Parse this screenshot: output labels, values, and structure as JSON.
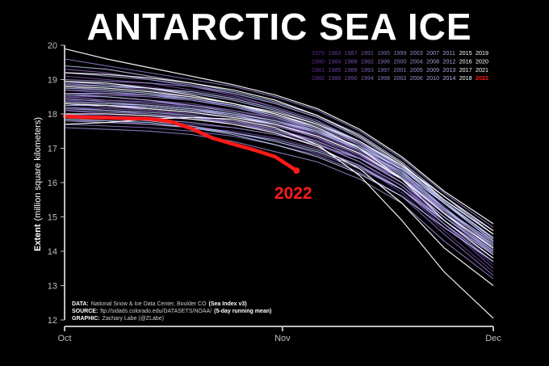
{
  "chart_data": {
    "type": "line",
    "title": "ANTARCTIC SEA ICE",
    "ylabel_main": "Extent",
    "ylabel_unit": "(million square kilometers)",
    "ylim": [
      12,
      20
    ],
    "yticks": [
      "12",
      "13",
      "14",
      "15",
      "16",
      "17",
      "18",
      "19",
      "20"
    ],
    "xlim_days": [
      0,
      61
    ],
    "xticks": [
      {
        "label": "Oct",
        "day": 0
      },
      {
        "label": "Nov",
        "day": 31
      },
      {
        "label": "Dec",
        "day": 61
      }
    ],
    "legend_rows": [
      [
        "1979",
        "1983",
        "1987",
        "1991",
        "1995",
        "1999",
        "2003",
        "2007",
        "2011",
        "2015",
        "2019"
      ],
      [
        "1980",
        "1984",
        "1988",
        "1992",
        "1996",
        "2000",
        "2004",
        "2008",
        "2012",
        "2016",
        "2020"
      ],
      [
        "1981",
        "1985",
        "1989",
        "1993",
        "1997",
        "2001",
        "2005",
        "2009",
        "2013",
        "2017",
        "2021"
      ],
      [
        "1982",
        "1986",
        "1990",
        "1994",
        "1998",
        "2002",
        "2006",
        "2010",
        "2014",
        "2018",
        "2022"
      ]
    ],
    "highlight": {
      "name": "2022",
      "color": "#ff1a1a",
      "label": "2022",
      "x": [
        0,
        3,
        6,
        9,
        12,
        15,
        18,
        21,
        24,
        27,
        30,
        33
      ],
      "y": [
        17.93,
        17.9,
        17.89,
        17.87,
        17.86,
        17.78,
        17.58,
        17.3,
        17.12,
        16.95,
        16.75,
        16.35
      ]
    },
    "historical": {
      "x": [
        0,
        6,
        12,
        18,
        24,
        30,
        36,
        42,
        48,
        54,
        61
      ],
      "series": [
        [
          18.0,
          17.95,
          17.9,
          17.85,
          17.75,
          17.55,
          17.25,
          16.75,
          16.0,
          14.9,
          13.8
        ],
        [
          18.4,
          18.3,
          18.2,
          18.1,
          17.95,
          17.75,
          17.4,
          16.9,
          16.2,
          15.1,
          14.0
        ],
        [
          18.7,
          18.6,
          18.5,
          18.4,
          18.25,
          18.0,
          17.6,
          17.0,
          16.1,
          15.0,
          13.9
        ],
        [
          18.1,
          18.0,
          17.95,
          17.9,
          17.8,
          17.65,
          17.3,
          16.8,
          16.0,
          14.8,
          13.6
        ],
        [
          18.9,
          18.9,
          18.8,
          18.6,
          18.4,
          18.1,
          17.7,
          17.1,
          16.3,
          15.2,
          14.2
        ],
        [
          18.3,
          18.25,
          18.1,
          17.95,
          17.7,
          17.45,
          17.1,
          16.6,
          15.8,
          14.7,
          13.7
        ],
        [
          17.8,
          17.8,
          17.7,
          17.6,
          17.5,
          17.3,
          17.0,
          16.5,
          15.7,
          14.6,
          13.4
        ],
        [
          18.5,
          18.5,
          18.4,
          18.2,
          18.0,
          17.7,
          17.3,
          16.7,
          16.0,
          15.0,
          14.0
        ],
        [
          19.1,
          19.0,
          18.9,
          18.7,
          18.5,
          18.2,
          17.8,
          17.2,
          16.4,
          15.4,
          14.4
        ],
        [
          17.9,
          17.85,
          17.8,
          17.7,
          17.6,
          17.4,
          17.1,
          16.6,
          15.9,
          14.8,
          13.5
        ],
        [
          18.6,
          18.5,
          18.4,
          18.3,
          18.1,
          17.85,
          17.5,
          16.9,
          16.1,
          15.0,
          13.9
        ],
        [
          18.2,
          18.15,
          18.1,
          18.0,
          17.9,
          17.7,
          17.4,
          16.9,
          16.2,
          15.2,
          14.2
        ],
        [
          18.8,
          18.7,
          18.6,
          18.5,
          18.3,
          18.0,
          17.6,
          17.0,
          16.2,
          15.2,
          14.3
        ],
        [
          18.0,
          17.9,
          17.8,
          17.65,
          17.45,
          17.2,
          16.85,
          16.4,
          15.8,
          14.8,
          13.8
        ],
        [
          19.3,
          19.2,
          19.0,
          18.8,
          18.55,
          18.2,
          17.8,
          17.2,
          16.5,
          15.6,
          14.6
        ],
        [
          18.4,
          18.4,
          18.35,
          18.25,
          18.1,
          17.9,
          17.55,
          17.0,
          16.3,
          15.3,
          14.1
        ],
        [
          17.7,
          17.65,
          17.6,
          17.5,
          17.35,
          17.1,
          16.8,
          16.3,
          15.6,
          14.5,
          13.3
        ],
        [
          18.5,
          18.4,
          18.3,
          18.2,
          18.0,
          17.8,
          17.5,
          17.0,
          16.4,
          15.5,
          14.6
        ],
        [
          18.9,
          18.8,
          18.7,
          18.5,
          18.3,
          18.0,
          17.6,
          17.1,
          16.3,
          15.1,
          13.9
        ],
        [
          18.2,
          18.1,
          18.0,
          17.9,
          17.7,
          17.5,
          17.2,
          16.7,
          16.0,
          15.0,
          14.0
        ],
        [
          19.6,
          19.4,
          19.2,
          19.0,
          18.8,
          18.5,
          18.1,
          17.5,
          16.7,
          15.7,
          14.7
        ],
        [
          18.6,
          18.55,
          18.5,
          18.4,
          18.2,
          17.95,
          17.6,
          17.1,
          16.4,
          15.4,
          14.3
        ],
        [
          17.6,
          17.55,
          17.5,
          17.4,
          17.2,
          16.9,
          16.6,
          16.1,
          15.4,
          14.3,
          13.2
        ],
        [
          18.3,
          18.2,
          18.15,
          18.05,
          17.9,
          17.65,
          17.3,
          16.8,
          16.1,
          15.1,
          14.1
        ],
        [
          19.0,
          18.95,
          18.9,
          18.8,
          18.6,
          18.3,
          17.9,
          17.3,
          16.5,
          15.4,
          14.3
        ],
        [
          18.1,
          18.05,
          18.0,
          17.9,
          17.75,
          17.5,
          17.15,
          16.6,
          15.9,
          14.9,
          13.9
        ],
        [
          18.7,
          18.65,
          18.55,
          18.4,
          18.2,
          17.9,
          17.5,
          16.95,
          16.2,
          15.2,
          14.1
        ],
        [
          17.9,
          17.9,
          17.85,
          17.75,
          17.6,
          17.4,
          17.1,
          16.7,
          16.1,
          15.2,
          14.2
        ],
        [
          18.45,
          18.35,
          18.25,
          18.15,
          17.95,
          17.7,
          17.35,
          16.85,
          16.15,
          15.15,
          14.05
        ],
        [
          19.2,
          19.1,
          19.0,
          18.85,
          18.6,
          18.3,
          17.9,
          17.3,
          16.5,
          15.5,
          14.5
        ],
        [
          18.3,
          18.25,
          18.2,
          18.1,
          17.95,
          17.75,
          17.45,
          17.0,
          16.4,
          15.5,
          14.5
        ],
        [
          17.8,
          17.75,
          17.7,
          17.6,
          17.45,
          17.25,
          16.95,
          16.5,
          15.8,
          14.8,
          13.7
        ],
        [
          18.6,
          18.6,
          18.55,
          18.45,
          18.25,
          18.0,
          17.65,
          17.15,
          16.45,
          15.45,
          14.4
        ],
        [
          18.95,
          18.85,
          18.75,
          18.6,
          18.4,
          18.1,
          17.7,
          17.15,
          16.35,
          15.25,
          14.15
        ],
        [
          18.15,
          18.1,
          18.05,
          17.95,
          17.8,
          17.55,
          17.2,
          16.7,
          16.0,
          15.0,
          13.95
        ],
        [
          18.55,
          18.5,
          18.4,
          18.25,
          18.05,
          17.8,
          17.45,
          16.95,
          16.3,
          15.4,
          14.4
        ],
        [
          19.4,
          19.3,
          19.1,
          18.9,
          18.65,
          18.35,
          17.95,
          17.4,
          16.6,
          15.6,
          14.5
        ],
        [
          18.25,
          18.25,
          18.2,
          18.1,
          17.95,
          17.7,
          17.35,
          16.85,
          16.15,
          15.1,
          14.0
        ],
        [
          17.95,
          17.9,
          17.8,
          17.65,
          17.45,
          17.2,
          16.9,
          16.45,
          15.8,
          14.9,
          13.9
        ],
        [
          18.75,
          18.7,
          18.6,
          18.45,
          18.25,
          17.95,
          17.55,
          17.0,
          16.25,
          15.25,
          14.25
        ],
        [
          18.85,
          18.8,
          18.75,
          18.65,
          18.45,
          18.15,
          17.75,
          17.2,
          16.45,
          15.45,
          14.35
        ],
        [
          18.35,
          18.3,
          18.25,
          18.15,
          18.0,
          17.8,
          17.5,
          17.05,
          16.4,
          15.4,
          14.3
        ],
        [
          17.85,
          17.8,
          17.75,
          17.6,
          17.4,
          17.1,
          16.75,
          16.25,
          15.6,
          14.7,
          13.7
        ]
      ]
    },
    "white_series": [
      [
        19.9,
        19.6,
        19.35,
        19.1,
        18.85,
        18.55,
        18.15,
        17.55,
        16.75,
        15.75,
        14.8
      ],
      [
        19.2,
        19.15,
        19.05,
        18.9,
        18.7,
        18.4,
        17.95,
        17.35,
        16.55,
        15.5,
        14.5
      ],
      [
        18.0,
        18.0,
        17.95,
        17.85,
        17.7,
        17.45,
        17.05,
        16.4,
        15.4,
        14.1,
        13.0
      ],
      [
        17.7,
        17.75,
        17.85,
        17.9,
        17.85,
        17.6,
        17.1,
        16.2,
        14.9,
        13.4,
        12.05
      ],
      [
        18.95,
        18.9,
        18.75,
        18.55,
        18.3,
        18.0,
        17.6,
        17.0,
        16.1,
        14.9,
        13.8
      ],
      [
        18.3,
        18.25,
        18.15,
        18.05,
        17.9,
        17.7,
        17.35,
        16.85,
        16.1,
        15.1,
        14.1
      ],
      [
        18.8,
        18.75,
        18.65,
        18.5,
        18.3,
        18.05,
        17.7,
        17.2,
        16.5,
        15.6,
        14.6
      ]
    ],
    "colors": {
      "history_dark": "#5b2a8a",
      "history_light": "#c3d4ff",
      "white": "#ffffff",
      "highlight": "#ff1a1a",
      "axis": "#bdbdbd"
    }
  },
  "credits": {
    "data_key": "DATA:",
    "data_val": "National Snow & Ice Data Center, Boulder CO",
    "data_extra": "(Sea Index v3)",
    "source_key": "SOURCE:",
    "source_val": "ftp://sidads.colorado.edu/DATASETS/NOAA/",
    "source_extra": "(5-day running mean)",
    "graphic_key": "GRAPHIC:",
    "graphic_val": "Zachary Labe (@ZLabe)"
  }
}
